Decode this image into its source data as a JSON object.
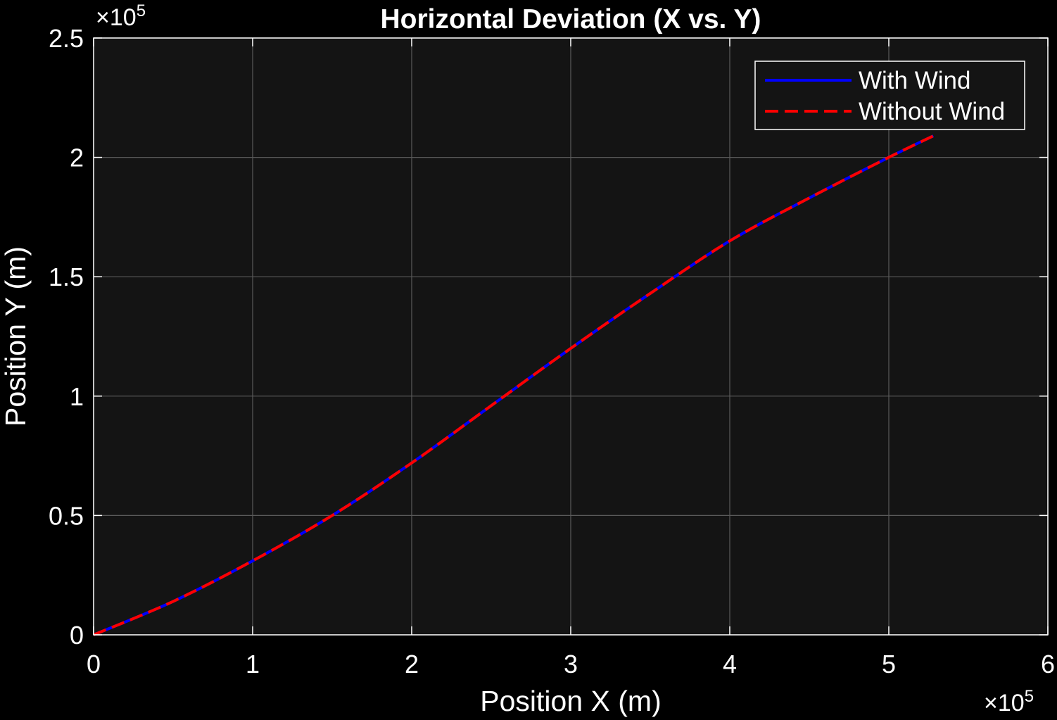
{
  "chart_data": {
    "type": "line",
    "title": "Horizontal Deviation (X vs. Y)",
    "xlabel": "Position X (m)",
    "ylabel": "Position Y (m)",
    "xlim": [
      0,
      600000
    ],
    "ylim": [
      0,
      250000
    ],
    "x_ticks": [
      0,
      100000,
      200000,
      300000,
      400000,
      500000,
      600000
    ],
    "x_tick_labels": [
      "0",
      "1",
      "2",
      "3",
      "4",
      "5",
      "6"
    ],
    "y_ticks": [
      0,
      50000,
      100000,
      150000,
      200000,
      250000
    ],
    "y_tick_labels": [
      "0",
      "0.5",
      "1",
      "1.5",
      "2",
      "2.5"
    ],
    "x_exponent_label": "×10",
    "x_exponent_power": "5",
    "y_exponent_label": "×10",
    "y_exponent_power": "5",
    "grid": true,
    "legend_position": "top-right",
    "series": [
      {
        "name": "With Wind",
        "color": "#0000ff",
        "style": "solid",
        "x": [
          0,
          50000,
          100000,
          150000,
          200000,
          250000,
          300000,
          350000,
          400000,
          450000,
          500000,
          528000
        ],
        "y": [
          0,
          14000,
          31000,
          50000,
          72000,
          96000,
          120000,
          143000,
          165000,
          183000,
          200000,
          209000
        ]
      },
      {
        "name": "Without Wind",
        "color": "#ff0000",
        "style": "dashed",
        "x": [
          0,
          50000,
          100000,
          150000,
          200000,
          250000,
          300000,
          350000,
          400000,
          450000,
          500000,
          528000
        ],
        "y": [
          0,
          14000,
          31000,
          50000,
          72000,
          96000,
          120000,
          143000,
          165000,
          183000,
          200000,
          209000
        ]
      }
    ]
  },
  "colors": {
    "background": "#000000",
    "plot_area": "#141414",
    "grid": "#5a5a5a",
    "axis": "#ffffff"
  }
}
